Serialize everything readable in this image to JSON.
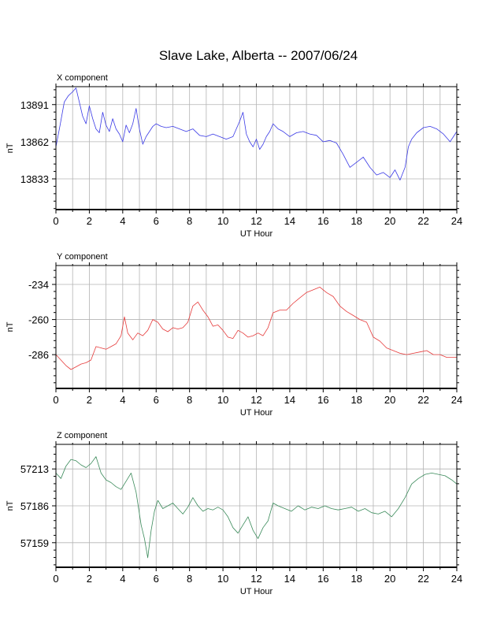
{
  "title": "Slave Lake, Alberta -- 2007/06/24",
  "chart_data": [
    {
      "type": "line",
      "title": "X component",
      "xlabel": "UT Hour",
      "ylabel": "nT",
      "xlim": [
        0,
        24
      ],
      "ylim": [
        13809,
        13905
      ],
      "x_ticks": [
        0,
        2,
        4,
        6,
        8,
        10,
        12,
        14,
        16,
        18,
        20,
        22,
        24
      ],
      "y_ticks": [
        13833,
        13862,
        13891
      ],
      "grid": true,
      "color": "#3a3ae6",
      "series": [
        {
          "x": [
            0,
            0.25,
            0.5,
            0.75,
            1.0,
            1.2,
            1.4,
            1.6,
            1.8,
            2.0,
            2.2,
            2.4,
            2.6,
            2.8,
            3.0,
            3.2,
            3.4,
            3.6,
            3.8,
            4.0,
            4.2,
            4.4,
            4.6,
            4.8,
            5.0,
            5.2,
            5.4,
            5.6,
            5.8,
            6.0,
            6.3,
            6.6,
            7.0,
            7.4,
            7.8,
            8.2,
            8.6,
            9.0,
            9.4,
            9.8,
            10.2,
            10.6,
            11.0,
            11.2,
            11.4,
            11.6,
            11.8,
            12.0,
            12.2,
            12.4,
            12.6,
            12.8,
            13.0,
            13.3,
            13.6,
            14.0,
            14.4,
            14.8,
            15.2,
            15.6,
            16.0,
            16.4,
            16.8,
            17.2,
            17.6,
            18.0,
            18.4,
            18.8,
            19.2,
            19.6,
            20.0,
            20.3,
            20.6,
            20.9,
            21.1,
            21.3,
            21.6,
            22.0,
            22.4,
            22.8,
            23.2,
            23.6,
            24.0
          ],
          "y": [
            13858,
            13875,
            13893,
            13898,
            13901,
            13904,
            13893,
            13882,
            13876,
            13890,
            13880,
            13872,
            13869,
            13885,
            13875,
            13870,
            13880,
            13872,
            13868,
            13862,
            13875,
            13869,
            13876,
            13888,
            13872,
            13860,
            13866,
            13870,
            13874,
            13876,
            13874,
            13873,
            13874,
            13872,
            13870,
            13872,
            13867,
            13866,
            13868,
            13866,
            13864,
            13866,
            13878,
            13885,
            13868,
            13862,
            13858,
            13864,
            13856,
            13860,
            13866,
            13870,
            13876,
            13872,
            13870,
            13866,
            13869,
            13870,
            13868,
            13867,
            13862,
            13863,
            13861,
            13852,
            13842,
            13846,
            13850,
            13842,
            13836,
            13838,
            13834,
            13840,
            13832,
            13842,
            13858,
            13864,
            13869,
            13873,
            13874,
            13872,
            13868,
            13862,
            13870
          ]
        }
      ]
    },
    {
      "type": "line",
      "title": "Y component",
      "xlabel": "UT Hour",
      "ylabel": "nT",
      "xlim": [
        0,
        24
      ],
      "ylim": [
        -311,
        -220
      ],
      "x_ticks": [
        0,
        2,
        4,
        6,
        8,
        10,
        12,
        14,
        16,
        18,
        20,
        22,
        24
      ],
      "y_ticks": [
        -286,
        -260,
        -234
      ],
      "grid": true,
      "color": "#e63a3a",
      "series": [
        {
          "x": [
            0,
            0.3,
            0.6,
            0.9,
            1.2,
            1.5,
            1.8,
            2.1,
            2.4,
            2.7,
            3.0,
            3.3,
            3.6,
            3.9,
            4.1,
            4.3,
            4.6,
            4.9,
            5.2,
            5.5,
            5.8,
            6.1,
            6.4,
            6.7,
            7.0,
            7.3,
            7.6,
            7.9,
            8.2,
            8.5,
            8.8,
            9.1,
            9.4,
            9.7,
            10.0,
            10.3,
            10.6,
            10.9,
            11.2,
            11.5,
            11.8,
            12.1,
            12.4,
            12.7,
            13.0,
            13.4,
            13.8,
            14.2,
            14.6,
            15.0,
            15.4,
            15.8,
            16.2,
            16.6,
            17.0,
            17.4,
            17.8,
            18.2,
            18.6,
            19.0,
            19.4,
            19.8,
            20.2,
            20.6,
            21.0,
            21.4,
            21.8,
            22.2,
            22.6,
            23.0,
            23.4,
            23.8,
            24.0
          ],
          "y": [
            -286,
            -290,
            -294,
            -297,
            -295,
            -293,
            -292,
            -290,
            -280,
            -281,
            -282,
            -280,
            -278,
            -272,
            -258,
            -270,
            -275,
            -270,
            -272,
            -268,
            -260,
            -262,
            -267,
            -269,
            -266,
            -267,
            -266,
            -262,
            -250,
            -247,
            -253,
            -258,
            -265,
            -264,
            -268,
            -273,
            -274,
            -268,
            -270,
            -273,
            -272,
            -270,
            -272,
            -266,
            -255,
            -253,
            -253,
            -248,
            -244,
            -240,
            -238,
            -236,
            -240,
            -243,
            -250,
            -254,
            -257,
            -260,
            -262,
            -273,
            -276,
            -281,
            -283,
            -285,
            -286,
            -285,
            -284,
            -283,
            -286,
            -286,
            -288,
            -288,
            -288
          ]
        }
      ]
    },
    {
      "type": "line",
      "title": "Z component",
      "xlabel": "UT Hour",
      "ylabel": "nT",
      "xlim": [
        0,
        24
      ],
      "ylim": [
        57141,
        57231
      ],
      "x_ticks": [
        0,
        2,
        4,
        6,
        8,
        10,
        12,
        14,
        16,
        18,
        20,
        22,
        24
      ],
      "y_ticks": [
        57159,
        57186,
        57213
      ],
      "grid": true,
      "color": "#3a8a5a",
      "series": [
        {
          "x": [
            0,
            0.3,
            0.6,
            0.9,
            1.2,
            1.5,
            1.8,
            2.1,
            2.4,
            2.7,
            3.0,
            3.3,
            3.6,
            3.9,
            4.2,
            4.5,
            4.8,
            5.1,
            5.3,
            5.5,
            5.7,
            5.9,
            6.1,
            6.4,
            6.7,
            7.0,
            7.3,
            7.6,
            7.9,
            8.2,
            8.5,
            8.8,
            9.1,
            9.4,
            9.7,
            10.0,
            10.3,
            10.6,
            10.9,
            11.2,
            11.5,
            11.8,
            12.1,
            12.4,
            12.7,
            13.0,
            13.3,
            13.7,
            14.1,
            14.5,
            14.9,
            15.3,
            15.7,
            16.1,
            16.5,
            16.9,
            17.3,
            17.7,
            18.1,
            18.5,
            18.9,
            19.3,
            19.7,
            20.1,
            20.5,
            20.9,
            21.3,
            21.7,
            22.1,
            22.5,
            22.9,
            23.3,
            23.7,
            24.0
          ],
          "y": [
            57210,
            57206,
            57215,
            57220,
            57219,
            57216,
            57214,
            57217,
            57222,
            57210,
            57205,
            57203,
            57200,
            57198,
            57204,
            57210,
            57196,
            57172,
            57162,
            57148,
            57168,
            57182,
            57190,
            57184,
            57186,
            57188,
            57184,
            57180,
            57185,
            57192,
            57186,
            57182,
            57184,
            57183,
            57185,
            57183,
            57178,
            57170,
            57166,
            57172,
            57178,
            57168,
            57162,
            57170,
            57175,
            57188,
            57186,
            57184,
            57182,
            57186,
            57183,
            57185,
            57184,
            57186,
            57184,
            57183,
            57184,
            57185,
            57182,
            57184,
            57181,
            57180,
            57182,
            57178,
            57184,
            57192,
            57202,
            57206,
            57209,
            57210,
            57209,
            57208,
            57205,
            57202
          ]
        }
      ]
    }
  ]
}
